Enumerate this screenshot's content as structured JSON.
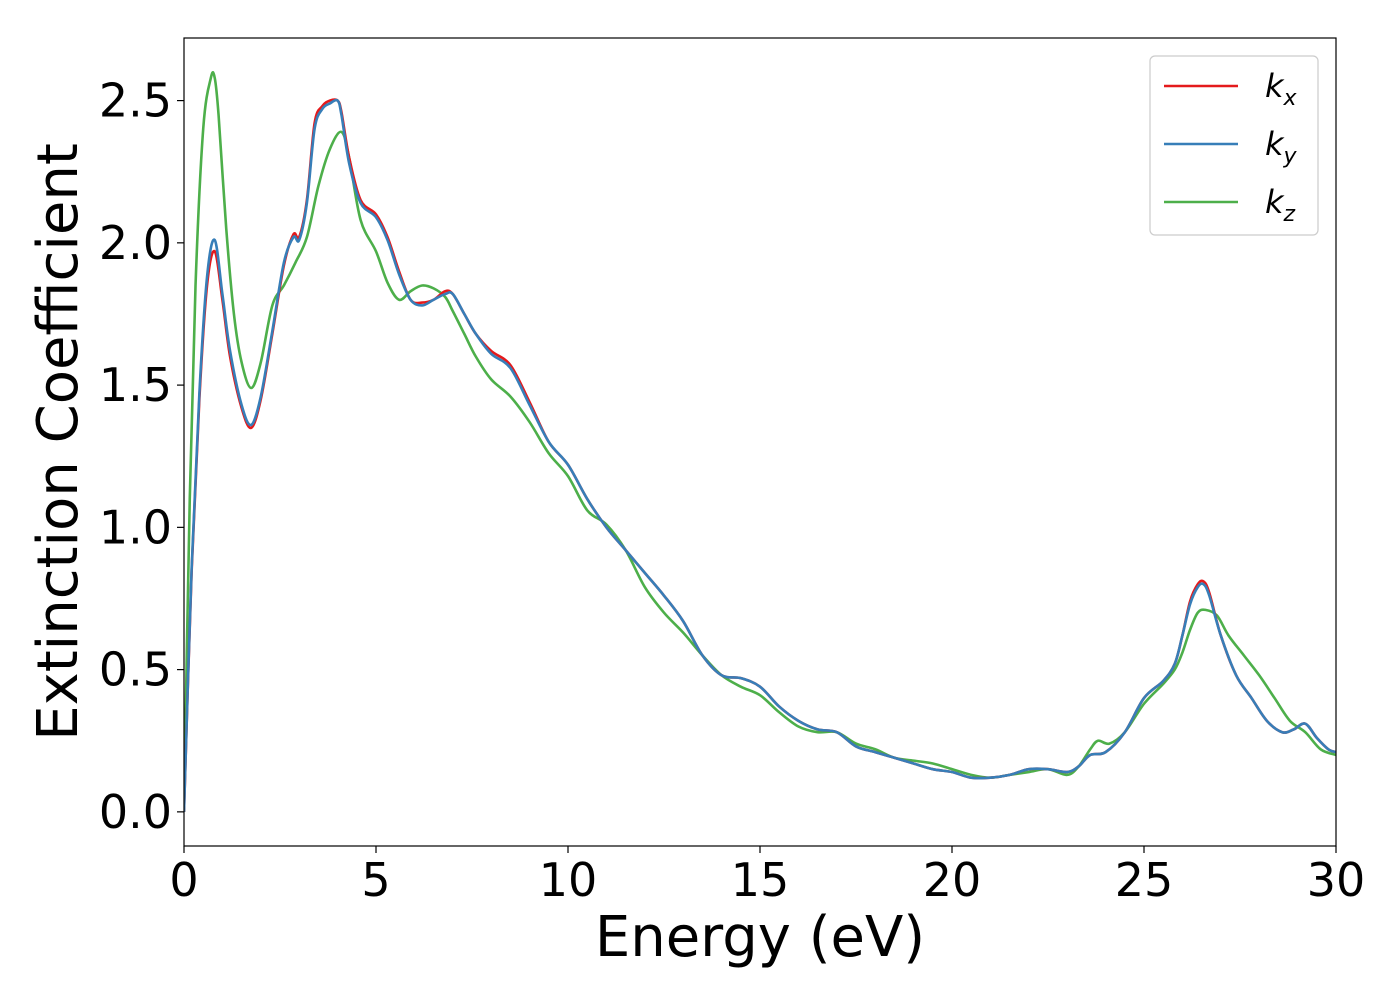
{
  "chart_data": {
    "type": "line",
    "xlabel": "Energy (eV)",
    "ylabel": "Extinction Coefficient",
    "xlim": [
      0,
      30
    ],
    "ylim": [
      -0.12,
      2.72
    ],
    "xticks": [
      0,
      5,
      10,
      15,
      20,
      25,
      30
    ],
    "xtick_labels": [
      "0",
      "5",
      "10",
      "15",
      "20",
      "25",
      "30"
    ],
    "yticks": [
      0.0,
      0.5,
      1.0,
      1.5,
      2.0,
      2.5
    ],
    "ytick_labels": [
      "0.0",
      "0.5",
      "1.0",
      "1.5",
      "2.0",
      "2.5"
    ],
    "grid": false,
    "legend_position": "top-right",
    "series": [
      {
        "name": "k",
        "subscript": "x",
        "color": "#e41a1c",
        "x": [
          0,
          0.2,
          0.4,
          0.6,
          0.8,
          1.0,
          1.2,
          1.5,
          1.75,
          2.0,
          2.3,
          2.6,
          2.85,
          3.0,
          3.2,
          3.4,
          3.6,
          3.8,
          4.0,
          4.1,
          4.3,
          4.6,
          5.0,
          5.3,
          5.6,
          5.9,
          6.2,
          6.5,
          6.8,
          7.0,
          7.3,
          7.6,
          8.0,
          8.5,
          9.0,
          9.5,
          10.0,
          10.5,
          11.0,
          11.5,
          12.0,
          12.5,
          13.0,
          13.5,
          14.0,
          14.5,
          15.0,
          15.5,
          16.0,
          16.5,
          17.0,
          17.5,
          18.0,
          18.5,
          19.0,
          19.5,
          20.0,
          20.5,
          21.0,
          21.5,
          22.0,
          22.5,
          23.0,
          23.3,
          23.6,
          24.0,
          24.5,
          25.0,
          25.5,
          25.8,
          26.0,
          26.2,
          26.4,
          26.55,
          26.7,
          27.0,
          27.4,
          27.8,
          28.2,
          28.6,
          28.9,
          29.2,
          29.5,
          29.8,
          30.0
        ],
        "y": [
          0.0,
          0.85,
          1.45,
          1.85,
          1.97,
          1.8,
          1.6,
          1.42,
          1.35,
          1.45,
          1.68,
          1.92,
          2.03,
          2.02,
          2.15,
          2.42,
          2.48,
          2.5,
          2.5,
          2.46,
          2.3,
          2.15,
          2.1,
          2.02,
          1.9,
          1.8,
          1.79,
          1.8,
          1.83,
          1.82,
          1.75,
          1.68,
          1.62,
          1.57,
          1.44,
          1.3,
          1.22,
          1.1,
          1.0,
          0.92,
          0.84,
          0.76,
          0.67,
          0.55,
          0.48,
          0.47,
          0.44,
          0.37,
          0.32,
          0.29,
          0.28,
          0.23,
          0.21,
          0.19,
          0.17,
          0.15,
          0.14,
          0.12,
          0.12,
          0.13,
          0.15,
          0.15,
          0.14,
          0.16,
          0.2,
          0.21,
          0.28,
          0.4,
          0.46,
          0.52,
          0.62,
          0.74,
          0.8,
          0.81,
          0.77,
          0.62,
          0.48,
          0.4,
          0.32,
          0.28,
          0.29,
          0.31,
          0.26,
          0.22,
          0.21
        ]
      },
      {
        "name": "k",
        "subscript": "y",
        "color": "#377eb8",
        "x": [
          0,
          0.2,
          0.4,
          0.6,
          0.8,
          1.0,
          1.2,
          1.5,
          1.75,
          2.0,
          2.3,
          2.6,
          2.85,
          3.0,
          3.2,
          3.4,
          3.6,
          3.8,
          4.0,
          4.1,
          4.3,
          4.6,
          5.0,
          5.3,
          5.6,
          5.9,
          6.2,
          6.5,
          6.8,
          7.0,
          7.3,
          7.6,
          8.0,
          8.5,
          9.0,
          9.5,
          10.0,
          10.5,
          11.0,
          11.5,
          12.0,
          12.5,
          13.0,
          13.5,
          14.0,
          14.5,
          15.0,
          15.5,
          16.0,
          16.5,
          17.0,
          17.5,
          18.0,
          18.5,
          19.0,
          19.5,
          20.0,
          20.5,
          21.0,
          21.5,
          22.0,
          22.5,
          23.0,
          23.3,
          23.6,
          24.0,
          24.5,
          25.0,
          25.5,
          25.8,
          26.0,
          26.2,
          26.4,
          26.55,
          26.7,
          27.0,
          27.4,
          27.8,
          28.2,
          28.6,
          28.9,
          29.2,
          29.5,
          29.8,
          30.0
        ],
        "y": [
          0.0,
          0.86,
          1.47,
          1.88,
          2.01,
          1.82,
          1.62,
          1.43,
          1.36,
          1.46,
          1.69,
          1.93,
          2.02,
          2.01,
          2.14,
          2.4,
          2.47,
          2.49,
          2.5,
          2.45,
          2.28,
          2.14,
          2.09,
          2.01,
          1.89,
          1.8,
          1.78,
          1.8,
          1.82,
          1.82,
          1.75,
          1.68,
          1.61,
          1.56,
          1.43,
          1.3,
          1.22,
          1.1,
          1.0,
          0.92,
          0.84,
          0.76,
          0.67,
          0.55,
          0.48,
          0.47,
          0.44,
          0.37,
          0.32,
          0.29,
          0.28,
          0.23,
          0.21,
          0.19,
          0.17,
          0.15,
          0.14,
          0.12,
          0.12,
          0.13,
          0.15,
          0.15,
          0.14,
          0.16,
          0.2,
          0.21,
          0.28,
          0.4,
          0.46,
          0.52,
          0.62,
          0.73,
          0.79,
          0.8,
          0.76,
          0.62,
          0.48,
          0.4,
          0.32,
          0.28,
          0.29,
          0.31,
          0.26,
          0.22,
          0.21
        ]
      },
      {
        "name": "k",
        "subscript": "z",
        "color": "#4daf4a",
        "x": [
          0,
          0.15,
          0.3,
          0.5,
          0.7,
          0.8,
          0.9,
          1.1,
          1.3,
          1.5,
          1.75,
          2.0,
          2.3,
          2.6,
          2.9,
          3.2,
          3.5,
          3.8,
          4.1,
          4.3,
          4.6,
          5.0,
          5.3,
          5.6,
          5.9,
          6.2,
          6.5,
          6.8,
          7.0,
          7.3,
          7.6,
          8.0,
          8.5,
          9.0,
          9.5,
          10.0,
          10.5,
          11.0,
          11.5,
          12.0,
          12.5,
          13.0,
          13.5,
          14.0,
          14.5,
          15.0,
          15.5,
          16.0,
          16.5,
          17.0,
          17.5,
          18.0,
          18.5,
          19.0,
          19.5,
          20.0,
          20.5,
          21.0,
          21.5,
          22.0,
          22.5,
          23.0,
          23.3,
          23.6,
          23.8,
          24.1,
          24.5,
          25.0,
          25.5,
          25.8,
          26.0,
          26.2,
          26.4,
          26.6,
          26.9,
          27.2,
          27.6,
          28.0,
          28.4,
          28.8,
          29.2,
          29.6,
          30.0
        ],
        "y": [
          0.0,
          1.1,
          1.85,
          2.4,
          2.58,
          2.58,
          2.45,
          2.05,
          1.75,
          1.58,
          1.49,
          1.58,
          1.78,
          1.85,
          1.93,
          2.02,
          2.2,
          2.33,
          2.39,
          2.3,
          2.08,
          1.97,
          1.86,
          1.8,
          1.83,
          1.85,
          1.84,
          1.81,
          1.76,
          1.68,
          1.6,
          1.52,
          1.46,
          1.37,
          1.26,
          1.18,
          1.06,
          1.01,
          0.92,
          0.79,
          0.7,
          0.63,
          0.55,
          0.48,
          0.44,
          0.41,
          0.35,
          0.3,
          0.28,
          0.28,
          0.24,
          0.22,
          0.19,
          0.18,
          0.17,
          0.15,
          0.13,
          0.12,
          0.13,
          0.14,
          0.15,
          0.13,
          0.16,
          0.22,
          0.25,
          0.24,
          0.28,
          0.38,
          0.45,
          0.5,
          0.56,
          0.64,
          0.7,
          0.71,
          0.69,
          0.62,
          0.55,
          0.48,
          0.4,
          0.32,
          0.28,
          0.22,
          0.2
        ]
      }
    ]
  }
}
